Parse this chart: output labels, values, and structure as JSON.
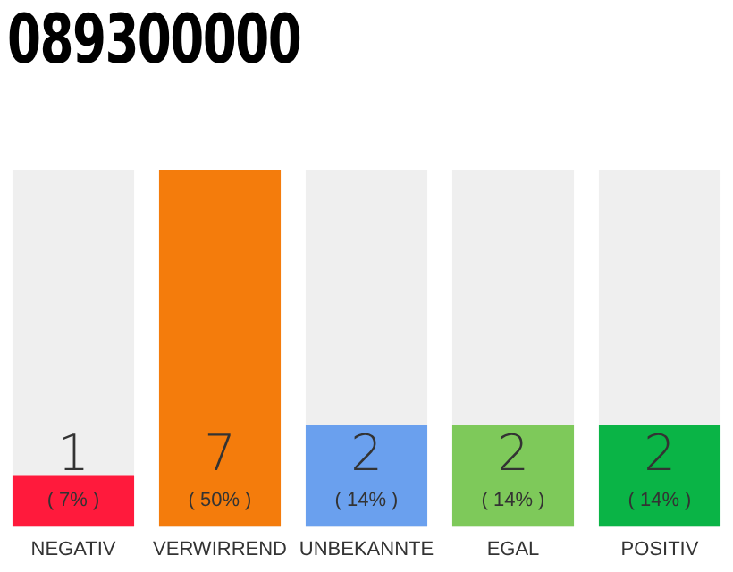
{
  "chart_data": {
    "type": "bar",
    "title": "089300000",
    "categories": [
      "NEGATIV",
      "VERWIRREND",
      "UNBEKANNTE",
      "EGAL",
      "POSITIV"
    ],
    "values": [
      1,
      7,
      2,
      2,
      2
    ],
    "colors": [
      "#ff1a3c",
      "#f47c0c",
      "#6aa0ee",
      "#7ec95a",
      "#0ab446"
    ],
    "value_labels": [
      "1\n( 7% )",
      "7\n( 50% )",
      "2\n( 14% )",
      "2\n( 14% )",
      "2\n( 14% )"
    ],
    "tick_labels": "x",
    "grid": false,
    "legend": false
  }
}
